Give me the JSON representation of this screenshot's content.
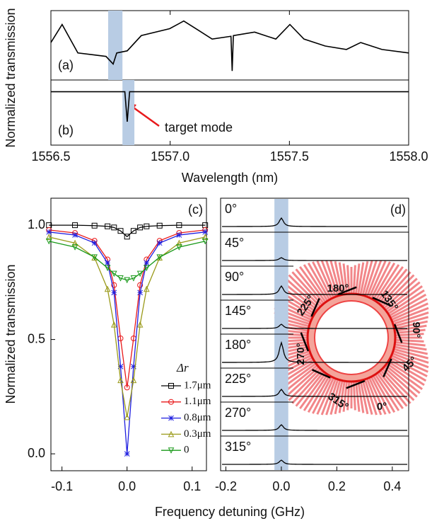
{
  "chart_data": [
    {
      "type": "stacked-panels",
      "xlabel": "Wavelength (nm)",
      "ylabel": "Normalized transmission",
      "xlim": [
        1556.5,
        1558.0
      ],
      "xticks": [
        1556.5,
        {
          "value": 1557.0,
          "label": "1557.0"
        },
        1557.5,
        {
          "value": 1558.0,
          "label": "1558.0"
        }
      ],
      "color": "#000000",
      "highlight_color": "#b8cce4",
      "panels": [
        {
          "label": "(a)",
          "ylim": [
            0,
            1
          ],
          "highlight": [
            1556.74,
            1556.8
          ],
          "x": [
            1556.5,
            1556.547,
            1556.613,
            1556.731,
            1556.761,
            1556.776,
            1556.82,
            1556.879,
            1556.998,
            1557.057,
            1557.117,
            1557.176,
            1557.255,
            1557.26,
            1557.265,
            1557.354,
            1557.443,
            1557.502,
            1557.561,
            1557.65,
            1557.739,
            1557.799,
            1557.888,
            1558.0
          ],
          "values": [
            0.54,
            0.8,
            0.39,
            0.34,
            0.23,
            0.39,
            0.42,
            0.64,
            0.74,
            0.85,
            0.72,
            0.59,
            0.63,
            0.13,
            0.64,
            0.69,
            0.59,
            0.8,
            0.59,
            0.49,
            0.44,
            0.54,
            0.44,
            0.39
          ]
        },
        {
          "label": "(b)",
          "ylim": [
            0,
            1
          ],
          "highlight": [
            1556.8,
            1556.85
          ],
          "annotation": "target mode",
          "x": [
            1556.5,
            1556.81,
            1556.82,
            1556.83,
            1558.0
          ],
          "values": [
            0.82,
            0.82,
            0.36,
            0.82,
            0.82
          ]
        }
      ]
    },
    {
      "type": "line",
      "ylabel": "Normalized transmission",
      "label": "(c)",
      "legend_title": "Δr",
      "xlim": [
        -0.117,
        0.122
      ],
      "ylim": [
        -0.074,
        1.118
      ],
      "xticks": [
        -0.1,
        {
          "value": 0,
          "label": "0.0"
        },
        0.1
      ],
      "yticks": [
        {
          "value": 0,
          "label": "0.0"
        },
        0.5,
        {
          "value": 1,
          "label": "1.0"
        }
      ],
      "x": [
        -0.12,
        -0.08,
        -0.05,
        -0.03,
        -0.02,
        -0.01,
        0,
        0.01,
        0.02,
        0.03,
        0.05,
        0.08,
        0.12
      ],
      "series": [
        {
          "name": "1.7μm",
          "color": "#000000",
          "marker": "square",
          "values": [
            1.0,
            1.0,
            0.998,
            0.995,
            0.99,
            0.975,
            0.95,
            0.975,
            0.99,
            0.995,
            0.998,
            1.0,
            1.0
          ]
        },
        {
          "name": "1.1μm",
          "color": "#e8191b",
          "marker": "circle",
          "values": [
            0.979,
            0.966,
            0.932,
            0.85,
            0.738,
            0.505,
            0.29,
            0.505,
            0.738,
            0.85,
            0.932,
            0.966,
            0.979
          ]
        },
        {
          "name": "0.8μm",
          "color": "#1f1fe0",
          "marker": "star",
          "values": [
            0.97,
            0.957,
            0.922,
            0.835,
            0.705,
            0.382,
            0.0,
            0.382,
            0.705,
            0.835,
            0.922,
            0.957,
            0.97
          ]
        },
        {
          "name": "0.3μm",
          "color": "#9a9a1a",
          "marker": "triangle-up",
          "values": [
            0.948,
            0.922,
            0.858,
            0.721,
            0.565,
            0.322,
            0.16,
            0.322,
            0.565,
            0.721,
            0.858,
            0.922,
            0.948
          ]
        },
        {
          "name": "0",
          "color": "#1a9a1a",
          "marker": "triangle-down",
          "values": [
            0.93,
            0.904,
            0.86,
            0.813,
            0.788,
            0.768,
            0.76,
            0.768,
            0.788,
            0.813,
            0.86,
            0.904,
            0.93
          ]
        }
      ]
    },
    {
      "type": "waterfall",
      "label": "(d)",
      "xlabel": "Frequency detuning (GHz)",
      "xlim": [
        -0.219,
        0.459
      ],
      "xticks": [
        -0.2,
        {
          "value": 0,
          "label": "0.0"
        },
        0.2,
        0.4
      ],
      "highlight": [
        -0.025,
        0.025
      ],
      "highlight_color": "#b8cce4",
      "color": "#000000",
      "rows": [
        {
          "name": "0°",
          "peak": 0.3
        },
        {
          "name": "45°",
          "peak": 0.1
        },
        {
          "name": "90°",
          "peak": 0.3
        },
        {
          "name": "145°",
          "peak": 0.15
        },
        {
          "name": "180°",
          "peak": 0.7
        },
        {
          "name": "225°",
          "peak": 0.25
        },
        {
          "name": "270°",
          "peak": 0.2
        },
        {
          "name": "315°",
          "peak": 0.15
        }
      ],
      "inset_angles": [
        "180°",
        "135°",
        "90°",
        "45°",
        "0°",
        "315°",
        "270°",
        "225°"
      ]
    }
  ]
}
